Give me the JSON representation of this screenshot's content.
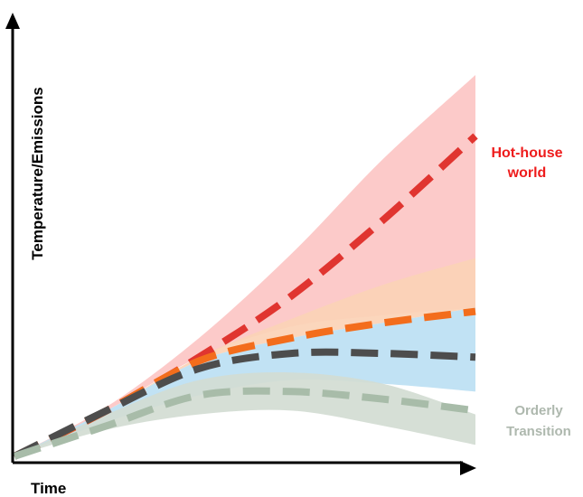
{
  "colors": {
    "hothouse_band": "#fcc6c4",
    "orange_band": "#fbd2b6",
    "blue_band": "#bcdff3",
    "orderly_band": "#d2dcd3",
    "hothouse_line": "#e03530",
    "orange_line": "#f36d1c",
    "dark_line": "#4d4d4d",
    "orderly_line": "#a8bca9",
    "hothouse_label": "#ee1c1c",
    "orderly_label": "#aeb8ae",
    "axis": "#000000"
  },
  "chart_data": {
    "type": "area",
    "xlabel": "Time",
    "ylabel": "Temperature/Emissions",
    "xlim": [
      0,
      100
    ],
    "ylim": [
      0,
      100
    ],
    "grid": false,
    "axis_ticks": false,
    "annotations": [
      {
        "text": "Hot-house world",
        "lines": [
          "Hot-house",
          "world"
        ],
        "color": "#ee1c1c",
        "series": "hothouse"
      },
      {
        "text": "Orderly Transition",
        "lines": [
          "Orderly",
          "Transition"
        ],
        "color": "#aeb8ae",
        "series": "orderly"
      }
    ],
    "x": [
      0,
      20,
      40,
      60,
      80,
      100
    ],
    "bands": [
      {
        "id": "hothouse",
        "color": "#fcc6c4",
        "upper": [
          0,
          13,
          31,
          53,
          78,
          100
        ],
        "lower": [
          0,
          12,
          26,
          34,
          37,
          39
        ]
      },
      {
        "id": "orange",
        "color": "#fbd2b6",
        "upper": [
          0,
          12,
          26,
          36,
          45,
          52
        ],
        "lower": [
          0,
          12,
          25,
          31,
          35,
          39
        ]
      },
      {
        "id": "blue",
        "color": "#bcdff3",
        "upper": [
          0,
          12,
          25,
          31,
          35,
          39
        ],
        "lower": [
          0,
          9,
          16,
          20,
          19,
          17
        ]
      },
      {
        "id": "orderly",
        "color": "#d2dcd3",
        "upper": [
          0,
          11,
          20,
          22,
          19,
          11
        ],
        "lower": [
          0,
          7,
          11,
          12,
          8,
          3
        ]
      }
    ],
    "series": [
      {
        "id": "hothouse",
        "color": "#e03530",
        "values": [
          0,
          12,
          26,
          42,
          62,
          84
        ]
      },
      {
        "id": "orange",
        "color": "#f36d1c",
        "values": [
          0,
          12,
          25,
          31,
          35,
          38
        ]
      },
      {
        "id": "dark",
        "color": "#4d4d4d",
        "values": [
          0,
          12,
          23,
          27,
          27,
          26
        ]
      },
      {
        "id": "orderly",
        "color": "#a8bca9",
        "values": [
          0,
          8,
          16,
          17,
          15,
          12
        ]
      }
    ]
  }
}
